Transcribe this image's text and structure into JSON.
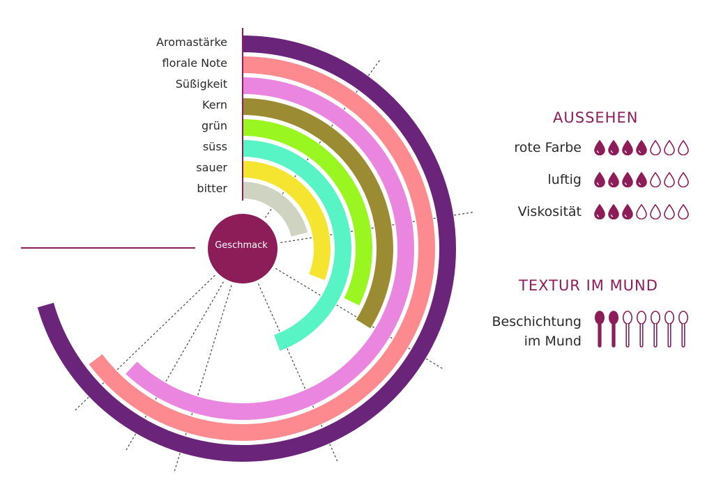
{
  "chart_data": {
    "type": "radial-bar",
    "center_label": "Geschmack",
    "max_angle": 360,
    "categories": [
      "Aromastärke",
      "florale Note",
      "Süßigkeit",
      "Kern",
      "grün",
      "süss",
      "sauer",
      "bitter"
    ],
    "values": [
      254,
      233,
      223,
      122,
      116,
      160,
      111,
      76
    ],
    "colors": [
      "#6a247a",
      "#fd8a8e",
      "#ea86e0",
      "#9b8c34",
      "#9af620",
      "#58f4c6",
      "#f5e530",
      "#cfd4c2"
    ],
    "accent": "#8c1d59"
  },
  "aussehen": {
    "title": "AUSSEHEN",
    "rows": [
      {
        "label": "rote Farbe",
        "filled": 4,
        "total": 7
      },
      {
        "label": "luftig",
        "filled": 4,
        "total": 7
      },
      {
        "label": "Viskosität",
        "filled": 3,
        "total": 7
      }
    ],
    "icon": "drop-icon"
  },
  "textur": {
    "title": "TEXTUR IM MUND",
    "rows": [
      {
        "label_line1": "Beschichtung",
        "label_line2": "im Mund",
        "filled": 2,
        "total": 7
      }
    ],
    "icon": "spoon-icon"
  }
}
